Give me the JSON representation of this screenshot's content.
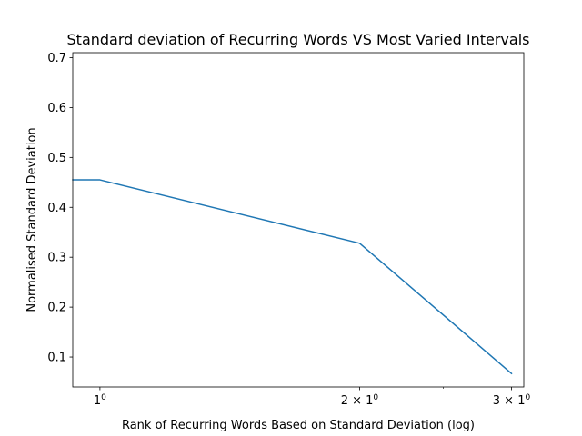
{
  "chart_data": {
    "type": "line",
    "title": "Standard deviation of Recurring Words VS Most Varied Intervals",
    "xlabel": "Rank of Recurring Words Based on Standard Deviation (log)",
    "ylabel": "Normalised Standard Deviation",
    "xscale": "log",
    "xlim": [
      0.93,
      3.1
    ],
    "ylim": [
      0.04,
      0.71
    ],
    "x": [
      0.93,
      1,
      2,
      3
    ],
    "series": [
      {
        "values": [
          0.455,
          0.455,
          0.328,
          0.067
        ]
      }
    ],
    "x_ticks": [
      {
        "value": 1,
        "base": "1",
        "exp": "0"
      },
      {
        "value": 2,
        "base": "2 × 1",
        "exp": "0"
      },
      {
        "value": 3,
        "base": "3 × 1",
        "exp": "0"
      }
    ],
    "y_ticks": [
      {
        "value": 0.1,
        "label": "0.1"
      },
      {
        "value": 0.2,
        "label": "0.2"
      },
      {
        "value": 0.3,
        "label": "0.3"
      },
      {
        "value": 0.4,
        "label": "0.4"
      },
      {
        "value": 0.5,
        "label": "0.5"
      },
      {
        "value": 0.6,
        "label": "0.6"
      },
      {
        "value": 0.7,
        "label": "0.7"
      }
    ],
    "grid": false,
    "colors": {
      "series": "#1f77b4",
      "axes": "#000000",
      "background": "#ffffff"
    }
  }
}
